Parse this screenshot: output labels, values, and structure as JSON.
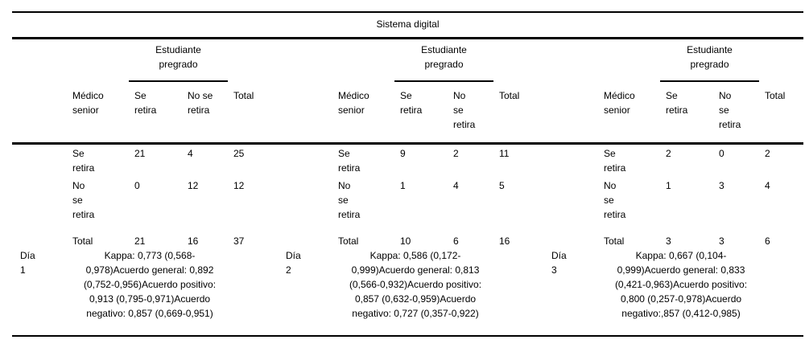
{
  "title": "Sistema digital",
  "group_header": "Estudiante\npregrado",
  "colors": {
    "text": "#000000",
    "background": "#ffffff",
    "rule": "#000000"
  },
  "blocks": [
    {
      "day_label": "Día\n1",
      "headers": {
        "medico": "Médico\nsenior",
        "se": "Se\nretira",
        "nose": "No se\nretira",
        "total": "Total"
      },
      "rows": [
        {
          "label": "Se\nretira",
          "se": "21",
          "nose": "4",
          "total": "25"
        },
        {
          "label": "No\nse\nretira",
          "se": "0",
          "nose": "12",
          "total": "12"
        },
        {
          "label": "Total",
          "se": "21",
          "nose": "16",
          "total": "37"
        }
      ],
      "stats": "Kappa: 0,773 (0,568-\n0,978)Acuerdo general: 0,892\n(0,752-0,956)Acuerdo positivo:\n0,913 (0,795-0,971)Acuerdo\nnegativo: 0,857 (0,669-0,951)"
    },
    {
      "day_label": "Día\n2",
      "headers": {
        "medico": "Médico\nsenior",
        "se": "Se\nretira",
        "nose": "No\nse\nretira",
        "total": "Total"
      },
      "rows": [
        {
          "label": "Se\nretira",
          "se": "9",
          "nose": "2",
          "total": "11"
        },
        {
          "label": "No\nse\nretira",
          "se": "1",
          "nose": "4",
          "total": "5"
        },
        {
          "label": "Total",
          "se": "10",
          "nose": "6",
          "total": "16"
        }
      ],
      "stats": "Kappa: 0,586 (0,172-\n0,999)Acuerdo general: 0,813\n(0,566-0,932)Acuerdo positivo:\n0,857 (0,632-0,959)Acuerdo\nnegativo: 0,727 (0,357-0,922)"
    },
    {
      "day_label": "Día\n3",
      "headers": {
        "medico": "Médico\nsenior",
        "se": "Se\nretira",
        "nose": "No\nse\nretira",
        "total": "Total"
      },
      "rows": [
        {
          "label": "Se\nretira",
          "se": "2",
          "nose": "0",
          "total": "2"
        },
        {
          "label": "No\nse\nretira",
          "se": "1",
          "nose": "3",
          "total": "4"
        },
        {
          "label": "Total",
          "se": "3",
          "nose": "3",
          "total": "6"
        }
      ],
      "stats": "Kappa: 0,667 (0,104-\n0,999)Acuerdo general: 0,833\n(0,421-0,963)Acuerdo positivo:\n0,800 (0,257-0,978)Acuerdo\nnegativo:,857 (0,412-0,985)"
    }
  ]
}
